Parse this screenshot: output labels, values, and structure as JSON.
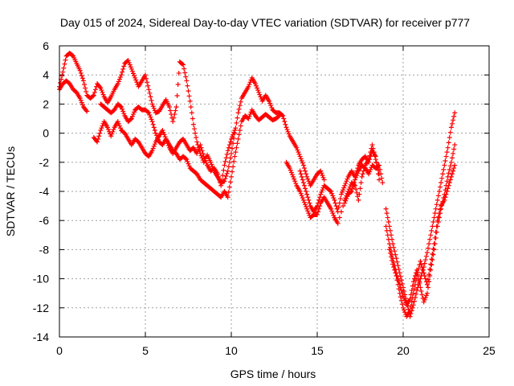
{
  "chart_data": {
    "type": "scatter",
    "title": "Day 015 of 2024, Sidereal Day-to-day VTEC variation (SDTVAR) for receiver p777",
    "xlabel": "GPS time / hours",
    "ylabel": "SDTVAR / TECUs",
    "xlim": [
      0,
      25
    ],
    "ylim": [
      -14,
      6
    ],
    "xticks": [
      0,
      5,
      10,
      15,
      20,
      25
    ],
    "yticks": [
      -14,
      -12,
      -10,
      -8,
      -6,
      -4,
      -2,
      0,
      2,
      4,
      6
    ],
    "grid": true,
    "marker": "plus",
    "color": "#ff0000",
    "series": [
      {
        "values": [
          [
            0.0,
            3.2
          ],
          [
            0.2,
            4.2
          ],
          [
            0.4,
            5.3
          ],
          [
            0.6,
            5.5
          ],
          [
            0.8,
            5.3
          ],
          [
            1.0,
            4.8
          ],
          [
            1.2,
            4.3
          ],
          [
            1.4,
            3.6
          ],
          [
            1.6,
            2.6
          ],
          [
            1.8,
            2.4
          ],
          [
            2.0,
            2.6
          ],
          [
            2.2,
            3.4
          ],
          [
            2.4,
            3.1
          ],
          [
            2.6,
            2.5
          ],
          [
            2.8,
            2.1
          ],
          [
            3.0,
            2.5
          ],
          [
            3.2,
            3.0
          ],
          [
            3.4,
            3.4
          ],
          [
            3.6,
            4.0
          ],
          [
            3.8,
            4.8
          ],
          [
            4.0,
            5.0
          ],
          [
            4.2,
            4.4
          ],
          [
            4.4,
            3.8
          ],
          [
            4.6,
            3.2
          ],
          [
            4.8,
            3.6
          ],
          [
            5.0,
            4.0
          ],
          [
            5.2,
            3.0
          ],
          [
            5.4,
            2.0
          ],
          [
            5.6,
            1.4
          ],
          [
            5.8,
            1.5
          ],
          [
            6.0,
            1.9
          ],
          [
            6.2,
            2.3
          ],
          [
            6.4,
            1.8
          ],
          [
            6.6,
            0.8
          ],
          [
            6.8,
            1.8
          ],
          [
            7.0,
            4.9
          ],
          [
            7.2,
            4.7
          ],
          [
            7.4,
            3.6
          ],
          [
            7.6,
            2.2
          ],
          [
            7.8,
            0.6
          ],
          [
            8.0,
            -0.6
          ],
          [
            8.2,
            -1.4
          ],
          [
            8.4,
            -2.0
          ],
          [
            8.6,
            -1.5
          ],
          [
            8.8,
            -2.0
          ],
          [
            9.0,
            -2.6
          ],
          [
            9.2,
            -3.0
          ],
          [
            9.4,
            -3.4
          ],
          [
            9.6,
            -3.3
          ],
          [
            9.8,
            -2.6
          ],
          [
            10.0,
            -1.4
          ],
          [
            10.2,
            0.0
          ],
          [
            10.4,
            1.4
          ],
          [
            10.6,
            2.4
          ],
          [
            10.8,
            2.8
          ],
          [
            11.0,
            3.2
          ],
          [
            11.2,
            3.8
          ],
          [
            11.4,
            3.4
          ],
          [
            11.6,
            2.8
          ],
          [
            11.8,
            2.2
          ],
          [
            12.0,
            2.6
          ],
          [
            12.2,
            2.2
          ],
          [
            12.4,
            1.6
          ],
          [
            12.6,
            1.4
          ],
          [
            12.8,
            1.4
          ],
          [
            13.0,
            1.2
          ],
          [
            13.2,
            0.4
          ],
          [
            13.4,
            -0.2
          ],
          [
            13.6,
            -0.6
          ],
          [
            13.8,
            -1.0
          ],
          [
            14.0,
            -1.6
          ],
          [
            14.2,
            -2.2
          ],
          [
            14.4,
            -3.0
          ],
          [
            14.6,
            -3.6
          ],
          [
            14.8,
            -3.2
          ],
          [
            15.0,
            -2.8
          ],
          [
            15.2,
            -2.6
          ],
          [
            15.4,
            -3.2
          ]
        ]
      },
      {
        "values": [
          [
            0.0,
            3.0
          ],
          [
            0.2,
            3.4
          ],
          [
            0.4,
            3.6
          ],
          [
            0.6,
            3.4
          ],
          [
            0.8,
            3.0
          ],
          [
            1.0,
            2.8
          ],
          [
            1.2,
            2.4
          ],
          [
            1.4,
            1.8
          ],
          [
            1.6,
            1.5
          ],
          [
            2.4,
            2.0
          ],
          [
            2.6,
            1.8
          ],
          [
            2.8,
            1.6
          ],
          [
            3.0,
            1.4
          ],
          [
            3.2,
            1.6
          ],
          [
            3.4,
            2.0
          ],
          [
            3.6,
            1.8
          ],
          [
            3.8,
            1.2
          ],
          [
            4.0,
            0.8
          ],
          [
            4.2,
            1.0
          ],
          [
            4.4,
            1.6
          ],
          [
            4.6,
            1.8
          ],
          [
            4.8,
            1.6
          ],
          [
            5.0,
            1.6
          ],
          [
            5.2,
            1.4
          ],
          [
            5.4,
            0.8
          ],
          [
            5.6,
            0.0
          ],
          [
            5.8,
            -0.6
          ],
          [
            6.0,
            -0.8
          ],
          [
            6.2,
            -0.4
          ],
          [
            6.4,
            -0.8
          ],
          [
            6.6,
            -1.2
          ],
          [
            6.8,
            -1.4
          ],
          [
            7.0,
            -1.8
          ],
          [
            7.2,
            -1.6
          ],
          [
            7.4,
            -1.8
          ],
          [
            7.6,
            -2.4
          ],
          [
            7.8,
            -2.6
          ],
          [
            8.0,
            -2.8
          ],
          [
            8.2,
            -3.2
          ],
          [
            8.4,
            -3.4
          ],
          [
            8.6,
            -3.6
          ],
          [
            8.8,
            -3.8
          ],
          [
            9.0,
            -4.0
          ],
          [
            9.2,
            -4.2
          ],
          [
            9.4,
            -4.4
          ],
          [
            9.6,
            -4.0
          ],
          [
            9.8,
            -4.4
          ],
          [
            10.0,
            -3.0
          ],
          [
            10.2,
            -1.6
          ],
          [
            10.4,
            -0.4
          ],
          [
            10.6,
            0.8
          ],
          [
            10.8,
            1.2
          ],
          [
            11.0,
            1.0
          ],
          [
            11.2,
            1.6
          ],
          [
            11.4,
            1.2
          ],
          [
            11.6,
            0.9
          ],
          [
            11.8,
            1.1
          ],
          [
            12.0,
            1.3
          ],
          [
            12.2,
            1.1
          ],
          [
            12.4,
            0.9
          ],
          [
            12.6,
            1.0
          ],
          [
            12.8,
            1.2
          ]
        ]
      },
      {
        "values": [
          [
            2.0,
            -0.3
          ],
          [
            2.2,
            -0.6
          ],
          [
            2.4,
            0.2
          ],
          [
            2.6,
            0.8
          ],
          [
            2.8,
            0.4
          ],
          [
            3.0,
            -0.2
          ],
          [
            3.2,
            0.4
          ],
          [
            3.4,
            0.8
          ],
          [
            3.6,
            0.2
          ],
          [
            3.8,
            0.0
          ],
          [
            4.0,
            -0.4
          ],
          [
            4.2,
            -0.8
          ],
          [
            4.4,
            -0.4
          ],
          [
            4.6,
            -0.6
          ],
          [
            4.8,
            -1.0
          ],
          [
            5.0,
            -1.4
          ],
          [
            5.2,
            -1.6
          ],
          [
            5.4,
            -1.2
          ],
          [
            5.6,
            -0.6
          ],
          [
            5.8,
            -0.2
          ],
          [
            6.0,
            0.2
          ],
          [
            6.2,
            -0.4
          ],
          [
            6.4,
            -1.0
          ],
          [
            6.6,
            -1.4
          ],
          [
            6.8,
            -1.0
          ],
          [
            7.0,
            -0.6
          ],
          [
            7.2,
            -0.4
          ],
          [
            7.4,
            -0.8
          ],
          [
            7.6,
            -1.2
          ],
          [
            7.8,
            -1.0
          ],
          [
            8.0,
            -1.4
          ],
          [
            8.2,
            -0.8
          ],
          [
            8.4,
            -1.6
          ],
          [
            8.6,
            -2.2
          ],
          [
            8.8,
            -2.6
          ],
          [
            9.0,
            -2.4
          ],
          [
            9.2,
            -2.8
          ],
          [
            9.4,
            -3.6
          ],
          [
            9.6,
            -2.2
          ],
          [
            9.8,
            -1.2
          ],
          [
            10.0,
            -0.4
          ],
          [
            10.2,
            0.2
          ]
        ]
      },
      {
        "values": [
          [
            14.0,
            -2.6
          ],
          [
            14.2,
            -3.4
          ],
          [
            14.4,
            -4.2
          ],
          [
            14.6,
            -5.0
          ],
          [
            14.8,
            -5.4
          ],
          [
            15.0,
            -5.0
          ],
          [
            15.2,
            -4.2
          ],
          [
            15.4,
            -3.6
          ],
          [
            15.6,
            -3.8
          ],
          [
            15.8,
            -4.0
          ],
          [
            16.0,
            -4.6
          ],
          [
            16.2,
            -5.4
          ],
          [
            16.4,
            -4.2
          ],
          [
            16.6,
            -3.6
          ],
          [
            16.8,
            -3.0
          ],
          [
            17.0,
            -2.6
          ],
          [
            17.2,
            -3.0
          ],
          [
            17.4,
            -2.2
          ],
          [
            17.6,
            -1.8
          ],
          [
            17.8,
            -1.6
          ],
          [
            18.0,
            -2.0
          ],
          [
            18.2,
            -1.2
          ],
          [
            18.4,
            -1.6
          ],
          [
            18.6,
            -3.2
          ]
        ]
      },
      {
        "values": [
          [
            13.2,
            -2.0
          ],
          [
            13.4,
            -2.4
          ],
          [
            13.6,
            -3.0
          ],
          [
            13.8,
            -3.6
          ],
          [
            14.0,
            -4.0
          ],
          [
            14.2,
            -4.6
          ],
          [
            14.4,
            -5.2
          ],
          [
            14.6,
            -5.8
          ],
          [
            14.8,
            -5.6
          ],
          [
            15.0,
            -5.6
          ],
          [
            15.2,
            -4.8
          ],
          [
            15.4,
            -4.4
          ],
          [
            15.6,
            -4.8
          ],
          [
            15.8,
            -5.2
          ],
          [
            16.0,
            -5.8
          ],
          [
            16.2,
            -6.2
          ],
          [
            16.6,
            -4.6
          ],
          [
            16.8,
            -4.0
          ],
          [
            17.0,
            -3.4
          ],
          [
            17.2,
            -3.6
          ],
          [
            17.4,
            -4.6
          ],
          [
            17.6,
            -3.0
          ],
          [
            17.8,
            -2.2
          ],
          [
            18.0,
            -1.8
          ],
          [
            18.2,
            -0.8
          ],
          [
            18.4,
            -1.8
          ],
          [
            18.6,
            -2.8
          ]
        ]
      },
      {
        "values": [
          [
            19.0,
            -5.2
          ],
          [
            19.2,
            -6.4
          ],
          [
            19.4,
            -7.6
          ],
          [
            19.6,
            -8.6
          ],
          [
            19.8,
            -9.6
          ],
          [
            20.0,
            -10.6
          ],
          [
            20.2,
            -11.6
          ],
          [
            20.4,
            -12.6
          ],
          [
            20.6,
            -11.8
          ],
          [
            20.8,
            -10.8
          ],
          [
            21.0,
            -10.0
          ],
          [
            21.2,
            -9.2
          ],
          [
            21.4,
            -8.2
          ],
          [
            21.6,
            -7.0
          ],
          [
            21.8,
            -5.8
          ],
          [
            22.0,
            -4.6
          ],
          [
            22.2,
            -3.4
          ],
          [
            22.4,
            -2.2
          ],
          [
            22.6,
            -1.0
          ],
          [
            22.8,
            0.4
          ],
          [
            23.0,
            1.4
          ]
        ]
      },
      {
        "values": [
          [
            19.0,
            -6.4
          ],
          [
            19.2,
            -7.6
          ],
          [
            19.4,
            -8.6
          ],
          [
            19.6,
            -9.6
          ],
          [
            19.8,
            -10.4
          ],
          [
            20.0,
            -11.2
          ],
          [
            20.2,
            -11.8
          ],
          [
            20.4,
            -11.4
          ],
          [
            20.6,
            -10.2
          ],
          [
            20.8,
            -9.4
          ],
          [
            21.0,
            -10.6
          ],
          [
            21.2,
            -11.6
          ],
          [
            21.4,
            -11.0
          ],
          [
            21.6,
            -9.4
          ],
          [
            21.8,
            -8.0
          ],
          [
            22.0,
            -6.4
          ],
          [
            22.2,
            -5.2
          ],
          [
            22.4,
            -4.2
          ],
          [
            22.6,
            -3.0
          ],
          [
            22.8,
            -2.0
          ],
          [
            23.0,
            -0.8
          ]
        ]
      },
      {
        "values": [
          [
            19.2,
            -8.0
          ],
          [
            19.4,
            -9.0
          ],
          [
            19.6,
            -9.8
          ],
          [
            19.8,
            -11.0
          ],
          [
            20.0,
            -12.0
          ],
          [
            20.2,
            -12.6
          ],
          [
            20.4,
            -12.2
          ],
          [
            20.6,
            -11.0
          ],
          [
            20.8,
            -9.8
          ],
          [
            21.0,
            -8.8
          ],
          [
            21.2,
            -9.6
          ],
          [
            21.4,
            -10.4
          ],
          [
            21.6,
            -9.0
          ],
          [
            21.8,
            -7.6
          ],
          [
            22.0,
            -6.0
          ],
          [
            22.2,
            -5.0
          ],
          [
            22.4,
            -4.6
          ],
          [
            22.6,
            -3.8
          ],
          [
            22.8,
            -3.0
          ],
          [
            23.0,
            -2.2
          ]
        ]
      },
      {
        "values": [
          [
            16.6,
            -4.8
          ],
          [
            16.8,
            -4.2
          ],
          [
            17.0,
            -4.0
          ],
          [
            17.2,
            -3.2
          ],
          [
            17.4,
            -2.6
          ],
          [
            17.6,
            -2.2
          ],
          [
            17.8,
            -2.4
          ],
          [
            18.0,
            -2.8
          ],
          [
            18.2,
            -2.2
          ],
          [
            18.4,
            -2.4
          ],
          [
            18.6,
            -2.2
          ],
          [
            18.8,
            -3.4
          ]
        ]
      }
    ]
  }
}
